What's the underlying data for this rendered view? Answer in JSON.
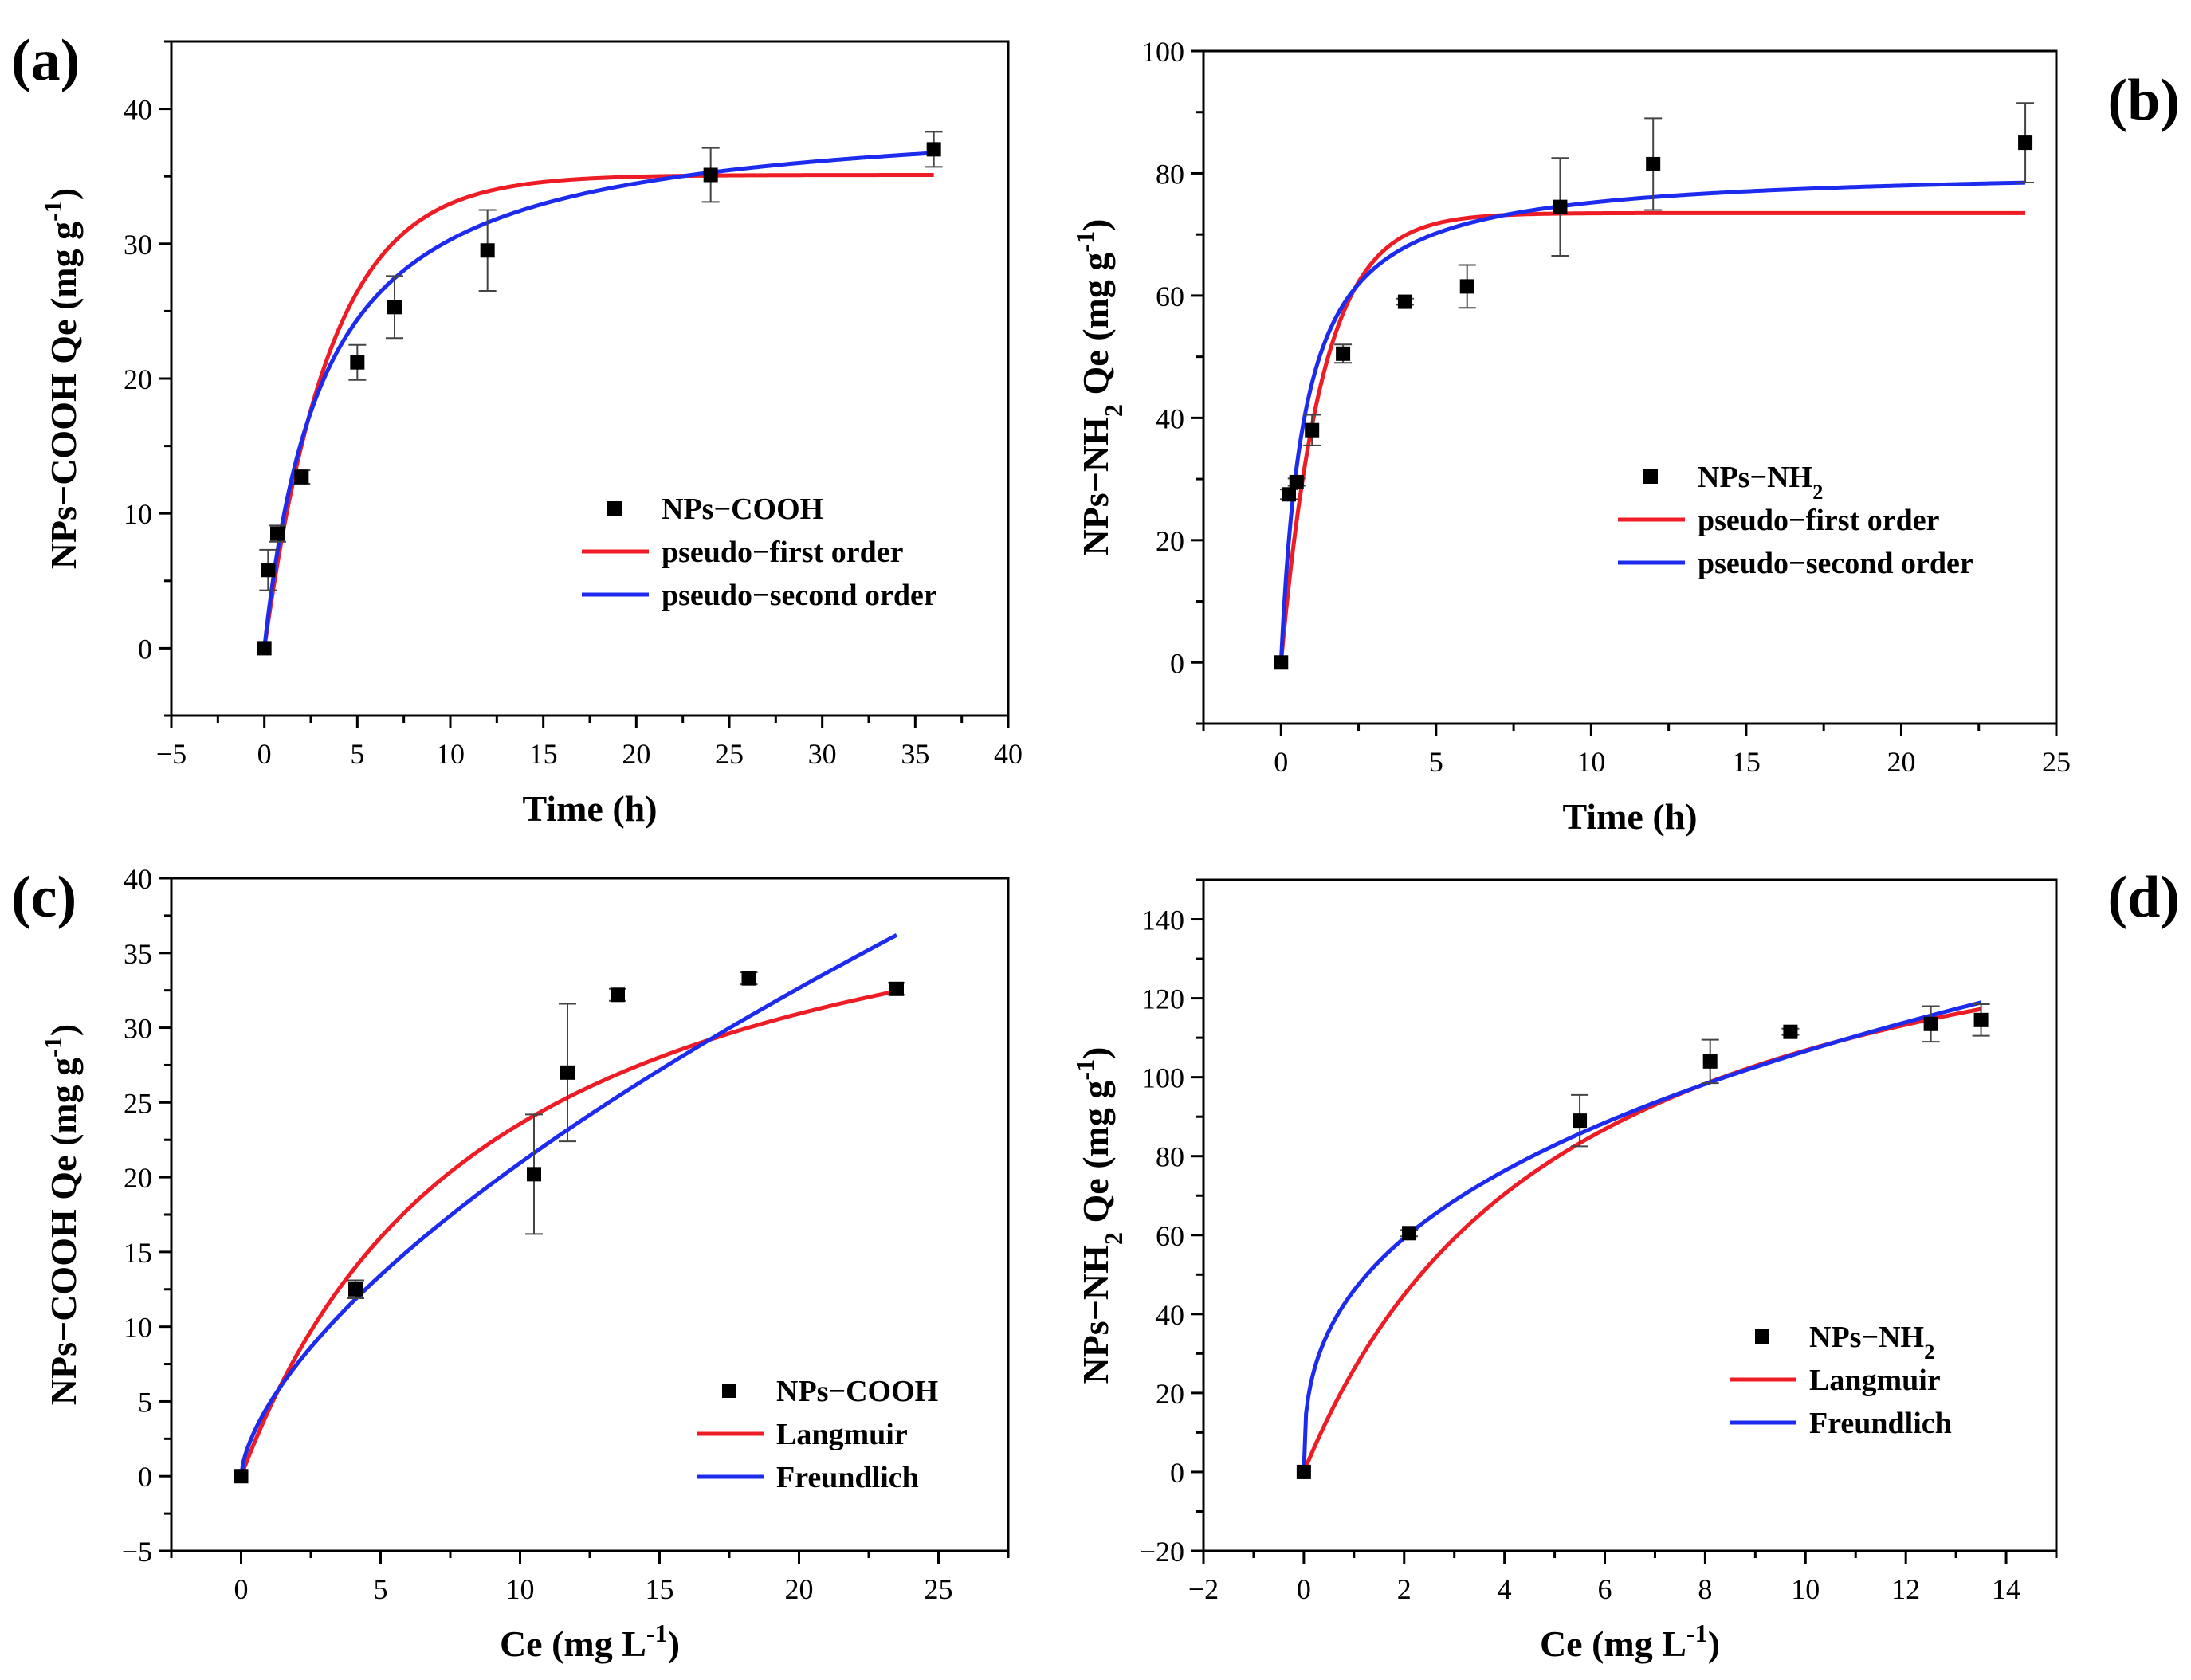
{
  "chart_data": [
    {
      "id": "a",
      "type": "scatter",
      "panel_label": "(a)",
      "xlabel": "Time (h)",
      "ylabel": {
        "pre": "NPs−COOH Qe (mg g",
        "sup": "-1",
        "post": ")"
      },
      "xlim": [
        -5,
        40
      ],
      "ylim": [
        -5,
        45
      ],
      "xticks": [
        "−5",
        "0",
        "5",
        "10",
        "15",
        "20",
        "25",
        "30",
        "35",
        "40"
      ],
      "yticks": [
        "0",
        "10",
        "20",
        "30",
        "40"
      ],
      "xtick_values": [
        -5,
        0,
        5,
        10,
        15,
        20,
        25,
        30,
        35,
        40
      ],
      "ytick_values": [
        0,
        10,
        20,
        30,
        40
      ],
      "legend_position": "right-middle",
      "points": {
        "name": "NPs−COOH",
        "x": [
          0,
          0.2,
          0.7,
          2,
          5,
          7,
          12,
          24,
          36
        ],
        "y": [
          0,
          5.8,
          8.5,
          12.7,
          21.2,
          25.3,
          29.5,
          35.1,
          37.0
        ],
        "err": [
          0,
          1.5,
          0.6,
          0.5,
          1.3,
          2.3,
          3.0,
          2.0,
          1.3
        ]
      },
      "models": [
        {
          "name": "pseudo−first order",
          "kind": "pfo",
          "color": "#ee1c24",
          "qe": 35.1,
          "k": 0.28,
          "xmax": 36
        },
        {
          "name": "pseudo−second order",
          "kind": "pso",
          "color": "#1c2bee",
          "qe": 40.0,
          "k": 0.0078,
          "xmax": 36
        }
      ]
    },
    {
      "id": "b",
      "type": "scatter",
      "panel_label": "(b)",
      "xlabel": "Time (h)",
      "ylabel": {
        "pre": "NPs−NH",
        "sub": "2",
        "mid": " Qe (mg g",
        "sup": "-1",
        "post": ")"
      },
      "xlim": [
        -2.5,
        25
      ],
      "ylim": [
        -10,
        100
      ],
      "xticks": [
        "0",
        "5",
        "10",
        "15",
        "20",
        "25"
      ],
      "yticks": [
        "0",
        "20",
        "40",
        "60",
        "80",
        "100"
      ],
      "xtick_values": [
        0,
        5,
        10,
        15,
        20,
        25
      ],
      "ytick_values": [
        0,
        20,
        40,
        60,
        80,
        100
      ],
      "legend_position": "right-middle",
      "points": {
        "name": "NPs−NH",
        "name_sub": "2",
        "x": [
          0,
          0.25,
          0.5,
          1,
          2,
          4,
          6,
          9,
          12,
          24
        ],
        "y": [
          0,
          27.5,
          29.5,
          38.0,
          50.5,
          59.0,
          61.5,
          74.5,
          81.5,
          85.0
        ],
        "err": [
          0,
          0.8,
          0.6,
          2.5,
          1.5,
          0.5,
          3.5,
          8.0,
          7.5,
          6.5
        ]
      },
      "models": [
        {
          "name": "pseudo−first order",
          "kind": "pfo",
          "color": "#ee1c24",
          "qe": 73.5,
          "k": 0.75,
          "xmax": 24
        },
        {
          "name": "pseudo−second order",
          "kind": "pso",
          "color": "#1c2bee",
          "qe": 81.0,
          "k": 0.016,
          "xmax": 24
        }
      ]
    },
    {
      "id": "c",
      "type": "scatter",
      "panel_label": "(c)",
      "xlabel": {
        "pre": "Ce (mg L",
        "sup": "-1",
        "post": ")"
      },
      "ylabel": {
        "pre": "NPs−COOH Qe (mg g",
        "sup": "-1",
        "post": ")"
      },
      "xlim": [
        -2.5,
        27.5
      ],
      "ylim": [
        -5,
        40
      ],
      "xticks": [
        "0",
        "5",
        "10",
        "15",
        "20",
        "25"
      ],
      "yticks": [
        "−5",
        "0",
        "5",
        "10",
        "15",
        "20",
        "25",
        "30",
        "35",
        "40"
      ],
      "xtick_values": [
        0,
        5,
        10,
        15,
        20,
        25
      ],
      "ytick_values": [
        -5,
        0,
        5,
        10,
        15,
        20,
        25,
        30,
        35,
        40
      ],
      "legend_position": "bottom-right",
      "points": {
        "name": "NPs−COOH",
        "x": [
          0,
          4.1,
          10.5,
          11.7,
          13.5,
          18.2,
          23.5
        ],
        "y": [
          0,
          12.5,
          20.2,
          27.0,
          32.2,
          33.3,
          32.6
        ],
        "err": [
          0,
          0.6,
          4.0,
          4.6,
          0.4,
          0.4,
          0.4
        ]
      },
      "models": [
        {
          "name": "Langmuir",
          "kind": "langmuir",
          "color": "#ee1c24",
          "qm": 45.0,
          "K": 0.11,
          "xmax": 23.5
        },
        {
          "name": "Freundlich",
          "kind": "freundlich",
          "color": "#1c2bee",
          "K": 4.8,
          "n": 0.64,
          "xmax": 23.5
        }
      ]
    },
    {
      "id": "d",
      "type": "scatter",
      "panel_label": "(d)",
      "xlabel": {
        "pre": "Ce (mg L",
        "sup": "-1",
        "post": ")"
      },
      "ylabel": {
        "pre": "NPs−NH",
        "sub": "2",
        "mid": " Qe (mg g",
        "sup": "-1",
        "post": ")"
      },
      "xlim": [
        -2,
        15
      ],
      "ylim": [
        -20,
        150
      ],
      "xticks": [
        "−2",
        "0",
        "2",
        "4",
        "6",
        "8",
        "10",
        "12",
        "14"
      ],
      "yticks": [
        "−20",
        "0",
        "20",
        "40",
        "60",
        "80",
        "100",
        "120",
        "140"
      ],
      "xtick_values": [
        -2,
        0,
        2,
        4,
        6,
        8,
        10,
        12,
        14
      ],
      "ytick_values": [
        -20,
        0,
        20,
        40,
        60,
        80,
        100,
        120,
        140
      ],
      "legend_position": "bottom-right",
      "points": {
        "name": "NPs−NH",
        "name_sub": "2",
        "x": [
          0,
          2.1,
          5.5,
          8.1,
          9.7,
          12.5,
          13.5
        ],
        "y": [
          0,
          60.5,
          89.0,
          104.0,
          111.5,
          113.5,
          114.5
        ],
        "err": [
          0,
          0.8,
          6.5,
          5.5,
          0.8,
          4.5,
          4.0
        ]
      },
      "models": [
        {
          "name": "Langmuir",
          "kind": "langmuir",
          "color": "#ee1c24",
          "qm": 163.0,
          "K": 0.19,
          "xmax": 13.5
        },
        {
          "name": "Freundlich",
          "kind": "freundlich",
          "color": "#1c2bee",
          "K": 46.0,
          "n": 0.365,
          "xmax": 13.5
        }
      ]
    }
  ]
}
